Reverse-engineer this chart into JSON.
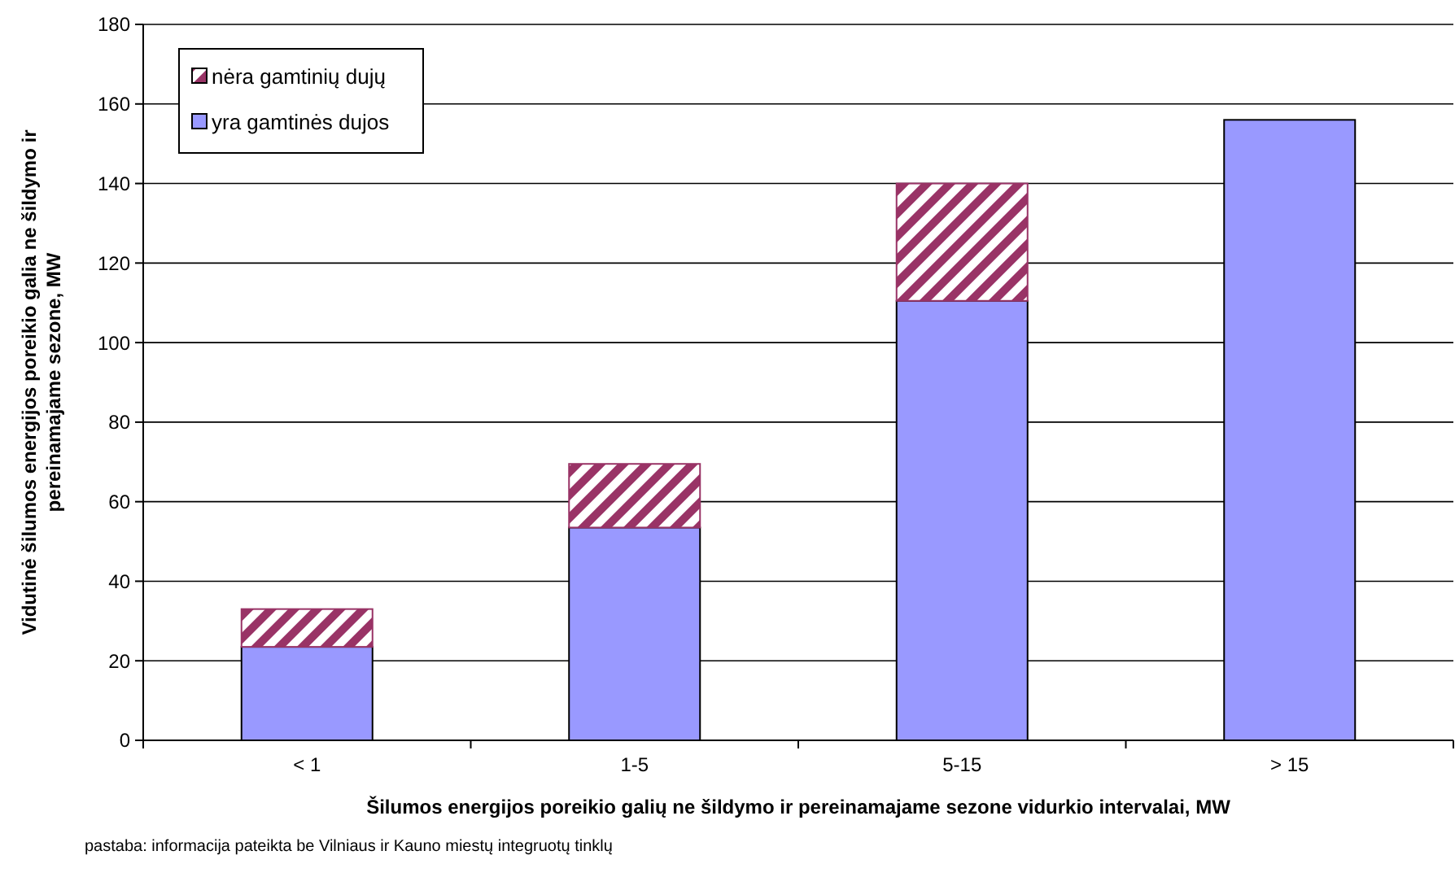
{
  "chart_data": {
    "type": "bar",
    "stacked": true,
    "categories": [
      "< 1",
      "1-5",
      "5-15",
      "> 15"
    ],
    "series": [
      {
        "name": "yra gamtinės dujos",
        "color": "#9999ff",
        "values": [
          23.5,
          53.5,
          110.5,
          156
        ]
      },
      {
        "name": "nėra gamtinių dujų",
        "color": "#993366",
        "values": [
          9.5,
          16,
          29.5,
          0
        ]
      }
    ],
    "ylim": [
      0,
      180
    ],
    "yticks": [
      0,
      20,
      40,
      60,
      80,
      100,
      120,
      140,
      160,
      180
    ],
    "grid": "y",
    "legend": "top left",
    "xlabel": "Šilumos energijos poreikio galių ne šildymo ir pereinamajame sezone vidurkio intervalai, MW",
    "ylabel": "Vidutinė šilumos energijos poreikio galia ne šildymo ir\npereinamajame sezone, MW",
    "annotations": [
      "pastaba: informacija pateikta be Vilniaus ir Kauno miestų integruotų tinklų"
    ]
  }
}
